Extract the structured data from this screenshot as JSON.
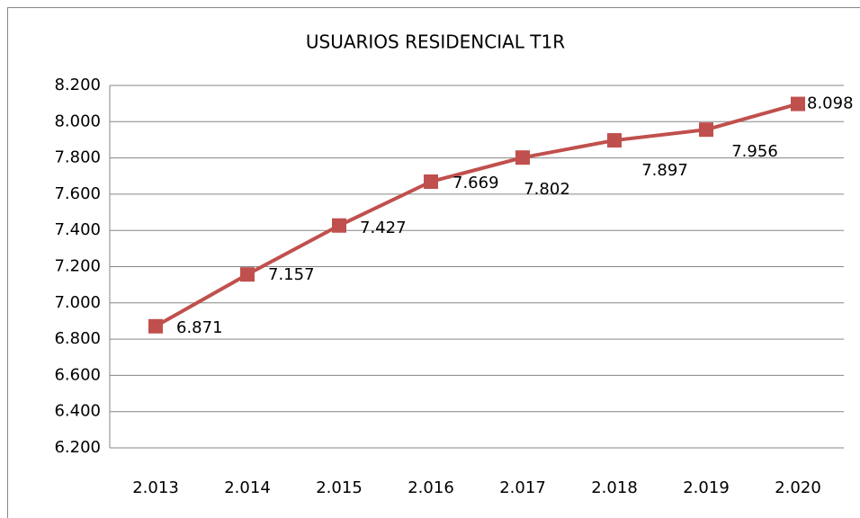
{
  "chart_data": {
    "type": "line",
    "title": "USUARIOS RESIDENCIAL T1R",
    "categories": [
      "2.013",
      "2.014",
      "2.015",
      "2.016",
      "2.017",
      "2.018",
      "2.019",
      "2.020"
    ],
    "series": [
      {
        "name": "USUARIOS RESIDENCIAL T1R",
        "color": "#c0504d",
        "values": [
          6871,
          7157,
          7427,
          7669,
          7802,
          7897,
          7956,
          8098
        ],
        "value_labels": [
          "6.871",
          "7.157",
          "7.427",
          "7.669",
          "7.802",
          "7.897",
          "7.956",
          "8.098"
        ]
      }
    ],
    "ylim": [
      6200,
      8200
    ],
    "yticks": [
      {
        "value": 6200,
        "label": "6.200"
      },
      {
        "value": 6400,
        "label": "6.400"
      },
      {
        "value": 6600,
        "label": "6.600"
      },
      {
        "value": 6800,
        "label": "6.800"
      },
      {
        "value": 7000,
        "label": "7.000"
      },
      {
        "value": 7200,
        "label": "7.200"
      },
      {
        "value": 7400,
        "label": "7.400"
      },
      {
        "value": 7600,
        "label": "7.600"
      },
      {
        "value": 7800,
        "label": "7.800"
      },
      {
        "value": 8000,
        "label": "8.000"
      },
      {
        "value": 8200,
        "label": "8.200"
      }
    ],
    "grid": true
  }
}
